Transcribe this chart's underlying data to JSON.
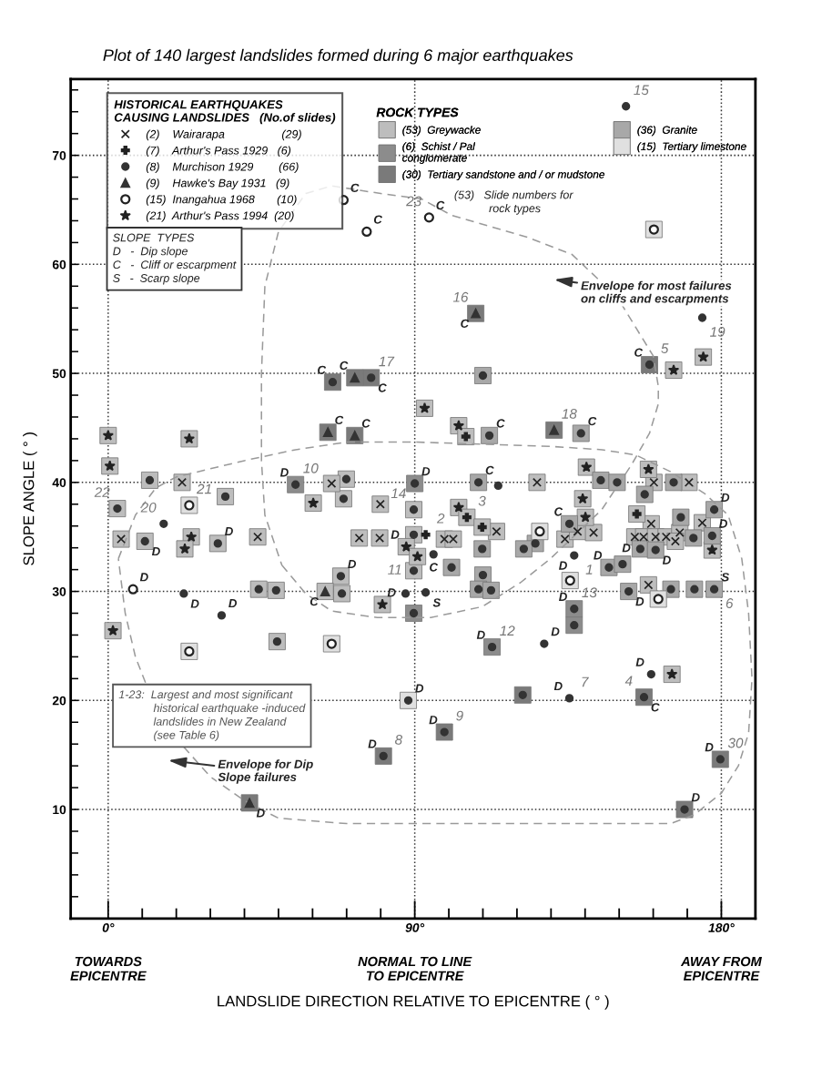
{
  "chart_data": {
    "type": "scatter",
    "title": "Plot of 140 largest landslides formed during 6 major earthquakes",
    "xlabel": "LANDSLIDE DIRECTION RELATIVE TO EPICENTRE ( ° )",
    "ylabel": "SLOPE ANGLE ( ° )",
    "legend_title": "HISTORICAL EARTHQUAKES\nCAUSING LANDSLIDES   (No.of slides)",
    "xlim": [
      -11,
      190
    ],
    "ylim": [
      0,
      77
    ],
    "xticks": [
      {
        "value": 0,
        "label": "0°"
      },
      {
        "value": 90,
        "label": "90°"
      },
      {
        "value": 180,
        "label": "180°"
      },
      {
        "value": 10,
        "label": null
      },
      {
        "value": 20,
        "label": null
      },
      {
        "value": 30,
        "label": null
      },
      {
        "value": 40,
        "label": null
      },
      {
        "value": 50,
        "label": null
      },
      {
        "value": 60,
        "label": null
      },
      {
        "value": 70,
        "label": null
      },
      {
        "value": 80,
        "label": null
      },
      {
        "value": 100,
        "label": null
      },
      {
        "value": 110,
        "label": null
      },
      {
        "value": 120,
        "label": null
      },
      {
        "value": 130,
        "label": null
      },
      {
        "value": 140,
        "label": null
      },
      {
        "value": 150,
        "label": null
      },
      {
        "value": 160,
        "label": null
      },
      {
        "value": 170,
        "label": null
      }
    ],
    "yticks": [
      10,
      20,
      30,
      40,
      50,
      60,
      70,
      {
        "value": 2,
        "label": null
      },
      {
        "value": 4,
        "label": null
      },
      {
        "value": 6,
        "label": null
      },
      {
        "value": 8,
        "label": null
      },
      {
        "value": 12,
        "label": null
      },
      {
        "value": 14,
        "label": null
      },
      {
        "value": 16,
        "label": null
      },
      {
        "value": 18,
        "label": null
      },
      {
        "value": 22,
        "label": null
      },
      {
        "value": 24,
        "label": null
      },
      {
        "value": 26,
        "label": null
      },
      {
        "value": 28,
        "label": null
      },
      {
        "value": 32,
        "label": null
      },
      {
        "value": 34,
        "label": null
      },
      {
        "value": 36,
        "label": null
      },
      {
        "value": 38,
        "label": null
      },
      {
        "value": 42,
        "label": null
      },
      {
        "value": 44,
        "label": null
      },
      {
        "value": 46,
        "label": null
      },
      {
        "value": 48,
        "label": null
      },
      {
        "value": 52,
        "label": null
      },
      {
        "value": 54,
        "label": null
      },
      {
        "value": 56,
        "label": null
      },
      {
        "value": 58,
        "label": null
      },
      {
        "value": 62,
        "label": null
      },
      {
        "value": 64,
        "label": null
      },
      {
        "value": 66,
        "label": null
      },
      {
        "value": 68,
        "label": null
      },
      {
        "value": 72,
        "label": null
      },
      {
        "value": 74,
        "label": null
      },
      {
        "value": 76,
        "label": null
      }
    ],
    "grid": true,
    "legend": "top left",
    "series": [
      {
        "name": "(53)  Greywacke",
        "marker": "square",
        "color": "#bdbdbd",
        "x": [
          12.2,
          34.4,
          2.7,
          10.8,
          32.2,
          69.9,
          69.1,
          89.7,
          89.7,
          89.7,
          68.3,
          68.6,
          44.2,
          49.3,
          49.6,
          63.7,
          21.7,
          3.8,
          43.9,
          65.6,
          79.9,
          73.7,
          79.7,
          98.7,
          101.3,
          114,
          125.9,
          160.2,
          170.5,
          134.1,
          137.8,
          142.5,
          159.4,
          154.6,
          157.2,
          160.7,
          163.8,
          167.8,
          166.5,
          174.4,
          158.6,
          0,
          23.8,
          0.5,
          24.4,
          22.5,
          1.4,
          60.2,
          87.5,
          90.8,
          80.5,
          92.9,
          102.9,
          102.9,
          140.4,
          158.6,
          139.3,
          140.1,
          177.3,
          165.5,
          174.7,
          166,
          105,
          105.3,
          109.8,
          155.2
        ],
        "values": [
          40.2,
          38.7,
          37.6,
          34.6,
          34.4,
          40.3,
          38.5,
          37.5,
          35.2,
          31.9,
          31.4,
          29.8,
          30.2,
          30.1,
          25.4,
          30,
          40,
          34.8,
          35,
          39.9,
          38,
          34.9,
          34.9,
          34.8,
          34.8,
          35.5,
          40,
          40,
          40,
          34.8,
          35.5,
          35.4,
          36.2,
          35,
          35,
          35,
          35,
          35.4,
          34.6,
          36.3,
          30.6,
          44.3,
          44,
          41.5,
          35,
          33.9,
          26.4,
          38.1,
          34.1,
          33.2,
          28.8,
          46.8,
          45.2,
          37.7,
          41.4,
          41.2,
          38.5,
          36.8,
          33.8,
          22.4,
          51.5,
          50.3,
          44.2,
          36.8,
          35.9,
          37.1
        ]
      },
      {
        "name": "(6)  Schist / Pal\nconglomerate",
        "marker": "square",
        "color": "#8c8c8c",
        "x": [
          55,
          90,
          112.7,
          136.8,
          136.8,
          89.7
        ],
        "values": [
          39.8,
          39.9,
          24.9,
          28.4,
          26.9,
          28
        ]
      },
      {
        "name": "(30)  Tertiary sandstone and / or mudstone",
        "marker": "square",
        "color": "#7a7a7a",
        "x": [
          65.9,
          77.2,
          107.9,
          130.9,
          158.9,
          64.5,
          72.4,
          41.5,
          80.8,
          169.2,
          179.7,
          98.7,
          121.7,
          157.3,
          72.4
        ],
        "values": [
          49.2,
          49.6,
          55.5,
          44.8,
          50.8,
          44.6,
          44.3,
          10.6,
          14.9,
          10,
          14.6,
          17.1,
          20.5,
          20.3,
          49.6
        ]
      },
      {
        "name": "(36)  Granite",
        "marker": "square",
        "color": "#a8a8a8",
        "x": [
          110,
          111.9,
          138.8,
          108.7,
          144.6,
          149.4,
          166,
          157.5,
          109.8,
          100.8,
          110,
          108.7,
          112.4,
          125.4,
          122,
          135.4,
          147,
          151,
          156.2,
          160.7,
          171.8,
          168.1,
          177.9,
          177.3,
          152.8,
          165.2,
          172.1,
          177.9
        ],
        "values": [
          49.8,
          44.3,
          44.5,
          40,
          40.2,
          40,
          40,
          38.9,
          33.9,
          32.2,
          31.5,
          30.2,
          30.1,
          34.4,
          33.9,
          36.2,
          32.2,
          32.5,
          33.9,
          33.8,
          34.9,
          36.8,
          37.5,
          35.1,
          30,
          30.2,
          30.2,
          30.2
        ]
      },
      {
        "name": "(15)  Tertiary limestone",
        "marker": "square",
        "color": "#e0e0e0",
        "x": [
          23.8,
          65.6,
          160.2,
          23.8,
          126.7,
          135.6,
          161.5,
          88.1
        ],
        "values": [
          24.5,
          25.2,
          63.2,
          37.9,
          35.5,
          31,
          29.3,
          20
        ]
      },
      {
        "name": "(2)    Wairarapa                  (29)",
        "marker": "cross",
        "color": "#222222",
        "x": [
          21.7,
          3.8,
          43.9,
          65.6,
          79.9,
          73.7,
          79.7,
          98.7,
          101.3,
          114,
          125.9,
          160.2,
          170.5,
          134.1,
          137.8,
          142.5,
          159.4,
          154.6,
          157.2,
          160.7,
          163.8,
          167.8,
          166.5,
          174.4,
          158.6
        ],
        "values": [
          40,
          34.8,
          35,
          39.9,
          38,
          34.9,
          34.9,
          34.8,
          34.8,
          35.5,
          40,
          40,
          40,
          34.8,
          35.5,
          35.4,
          36.2,
          35,
          35,
          35,
          35,
          35.4,
          34.6,
          36.3,
          30.6
        ]
      },
      {
        "name": "(7)    Arthur's Pass 1929   (6)",
        "marker": "plus",
        "color": "#222222",
        "x": [
          93.2,
          105,
          105.3,
          109.8,
          155.2
        ],
        "values": [
          35.2,
          44.2,
          36.8,
          35.9,
          37.1
        ]
      },
      {
        "name": "(8)    Murchison 1929        (66)",
        "marker": "circle",
        "color": "#333333",
        "x": [
          12.2,
          34.4,
          2.7,
          16.3,
          10.8,
          32.2,
          22.2,
          33.3,
          55,
          69.9,
          69.1,
          90,
          89.7,
          89.7,
          95.5,
          89.7,
          87.3,
          93.2,
          89.7,
          68.3,
          68.6,
          44.2,
          49.3,
          49.6,
          65.9,
          77.2,
          152,
          110,
          174.4,
          158.9,
          111.9,
          138.8,
          108.7,
          114.5,
          144.6,
          149.4,
          166,
          157.5,
          109.8,
          100.8,
          110,
          108.7,
          112.4,
          125.4,
          122,
          135.4,
          136.8,
          147,
          151,
          156.2,
          160.7,
          171.8,
          168.1,
          177.9,
          177.3,
          152.8,
          165.2,
          172.1,
          177.9,
          136.8,
          136.8,
          112.7,
          128,
          159.4,
          121.7,
          135.4,
          157.3,
          98.7,
          179.7,
          169.2,
          88.1,
          80.8
        ],
        "values": [
          40.2,
          38.7,
          37.6,
          36.2,
          34.6,
          34.4,
          29.8,
          27.8,
          39.8,
          40.3,
          38.5,
          39.9,
          37.5,
          35.2,
          33.4,
          31.9,
          29.8,
          29.9,
          28,
          31.4,
          29.8,
          30.2,
          30.1,
          25.4,
          49.2,
          49.6,
          74.5,
          49.8,
          55.1,
          50.8,
          44.3,
          44.5,
          40,
          39.7,
          40.2,
          40,
          40,
          38.9,
          33.9,
          32.2,
          31.5,
          30.2,
          30.1,
          34.4,
          33.9,
          36.2,
          33.3,
          32.2,
          32.5,
          33.9,
          33.8,
          34.9,
          36.8,
          37.5,
          35.1,
          30,
          30.2,
          30.2,
          30.2,
          28.4,
          26.9,
          24.9,
          25.2,
          22.4,
          20.5,
          20.2,
          20.3,
          17.1,
          14.6,
          10,
          20,
          14.9
        ]
      },
      {
        "name": "(9)    Hawke's Bay 1931   (9)",
        "marker": "triangle",
        "color": "#333333",
        "x": [
          64.5,
          72.4,
          72.4,
          63.7,
          107.9,
          130.9,
          41.5
        ],
        "values": [
          44.6,
          44.3,
          49.6,
          30,
          55.5,
          44.8,
          10.6
        ]
      },
      {
        "name": "(15)  Inangahua 1968       (10)",
        "marker": "circle-open",
        "color": "#222222",
        "x": [
          69.1,
          94.2,
          75.9,
          23.8,
          7.3,
          65.6,
          23.8,
          126.7,
          135.6,
          161.5,
          160.2
        ],
        "values": [
          65.9,
          64.3,
          63,
          37.9,
          30.2,
          25.2,
          24.5,
          35.5,
          31,
          29.3,
          63.2
        ]
      },
      {
        "name": "(21)  Arthur's Pass 1994  (20)",
        "marker": "star",
        "color": "#222222",
        "x": [
          0,
          23.8,
          0.5,
          24.4,
          22.5,
          1.4,
          60.2,
          87.5,
          90.8,
          80.5,
          92.9,
          102.9,
          102.9,
          140.4,
          158.6,
          139.3,
          140.1,
          177.3,
          165.5,
          174.7,
          166
        ],
        "values": [
          44.3,
          44,
          41.5,
          35,
          33.9,
          26.4,
          38.1,
          34.1,
          33.2,
          28.8,
          46.8,
          45.2,
          37.7,
          41.4,
          41.2,
          38.5,
          36.8,
          33.8,
          22.4,
          51.5,
          50.3
        ]
      }
    ],
    "annotations": [
      "SLOPE  TYPES\nD   -  Dip slope\nC   -  Cliff or escarpment\nS   -  Scarp slope",
      "1-23:  Largest and most significant\n           historical earthquake -induced\n           landslides in New Zealand\n           (see Table 6)",
      "(53)   Slide numbers for\n           rock types",
      "ROCK TYPES",
      "TOWARDS\nEPICENTRE",
      "NORMAL TO LINE\nTO EPICENTRE",
      "AWAY FROM\nEPICENTRE",
      "Envelope for Dip\nSlope failures",
      "Envelope for most failures\non cliffs and escarpments",
      {
        "text": "23",
        "x": 94.2,
        "y": 64.3
      },
      {
        "text": "15",
        "x": 152,
        "y": 74.5
      },
      {
        "text": "16",
        "x": 107.9,
        "y": 55.5
      },
      {
        "text": "19",
        "x": 174.4,
        "y": 55.1
      },
      {
        "text": "5",
        "x": 158.9,
        "y": 50.8
      },
      {
        "text": "17",
        "x": 77.2,
        "y": 49.6
      },
      {
        "text": "18",
        "x": 130.9,
        "y": 44.8
      },
      {
        "text": "10",
        "x": 55,
        "y": 39.8
      },
      {
        "text": "22",
        "x": 2.7,
        "y": 37.6
      },
      {
        "text": "21",
        "x": 23.8,
        "y": 37.9
      },
      {
        "text": "20",
        "x": 16.3,
        "y": 36.2
      },
      {
        "text": "14",
        "x": 89.7,
        "y": 37.5
      },
      {
        "text": "2",
        "x": 93.2,
        "y": 35.2
      },
      {
        "text": "3",
        "x": 105.3,
        "y": 36.8
      },
      {
        "text": "1",
        "x": 136.8,
        "y": 33.3
      },
      {
        "text": "11",
        "x": 89.7,
        "y": 31.9
      },
      {
        "text": "13",
        "x": 136.8,
        "y": 28.4
      },
      {
        "text": "12",
        "x": 112.7,
        "y": 24.9
      },
      {
        "text": "7",
        "x": 135.4,
        "y": 20.2
      },
      {
        "text": "4",
        "x": 157.3,
        "y": 20.3
      },
      {
        "text": "9",
        "x": 98.7,
        "y": 17.1
      },
      {
        "text": "8",
        "x": 80.8,
        "y": 14.9
      },
      {
        "text": "30",
        "x": 179.7,
        "y": 14.6
      },
      {
        "text": "6",
        "x": 177.9,
        "y": 30.2
      },
      {
        "text": "C",
        "x": 64.5,
        "y": 44.6
      },
      {
        "text": "C",
        "x": 72.4,
        "y": 44.3
      },
      {
        "text": "D",
        "x": 55,
        "y": 39.8
      },
      {
        "text": "D",
        "x": 90,
        "y": 39.9
      },
      {
        "text": "D",
        "x": 10.8,
        "y": 34.6
      },
      {
        "text": "D",
        "x": 32.2,
        "y": 34.4
      },
      {
        "text": "D",
        "x": 87.5,
        "y": 34.1
      },
      {
        "text": "C",
        "x": 95.5,
        "y": 33.4
      },
      {
        "text": "D",
        "x": 68.3,
        "y": 31.4
      },
      {
        "text": "C",
        "x": 63.7,
        "y": 30
      },
      {
        "text": "D",
        "x": 7.3,
        "y": 30.2
      },
      {
        "text": "D",
        "x": 22.2,
        "y": 29.8
      },
      {
        "text": "D",
        "x": 33.3,
        "y": 27.8
      },
      {
        "text": "D",
        "x": 87.3,
        "y": 29.8
      },
      {
        "text": "S",
        "x": 93.2,
        "y": 29.9
      },
      {
        "text": "C",
        "x": 69.1,
        "y": 65.9
      },
      {
        "text": "C",
        "x": 94.2,
        "y": 64.3
      },
      {
        "text": "C",
        "x": 75.9,
        "y": 63
      },
      {
        "text": "C",
        "x": 65.9,
        "y": 49.2
      },
      {
        "text": "C",
        "x": 72.4,
        "y": 49.6
      },
      {
        "text": "C",
        "x": 77.2,
        "y": 49.6
      },
      {
        "text": "C",
        "x": 107.9,
        "y": 55.5
      },
      {
        "text": "C",
        "x": 158.9,
        "y": 50.8
      },
      {
        "text": "C",
        "x": 111.9,
        "y": 44.3
      },
      {
        "text": "C",
        "x": 138.8,
        "y": 44.5
      },
      {
        "text": "C",
        "x": 108.7,
        "y": 40
      },
      {
        "text": "C",
        "x": 135.4,
        "y": 36.2
      },
      {
        "text": "D",
        "x": 136.8,
        "y": 33.3
      },
      {
        "text": "D",
        "x": 177.9,
        "y": 37.5
      },
      {
        "text": "D",
        "x": 177.3,
        "y": 35.1
      },
      {
        "text": "D",
        "x": 156.2,
        "y": 33.9
      },
      {
        "text": "D",
        "x": 160.7,
        "y": 33.8
      },
      {
        "text": "D",
        "x": 147,
        "y": 32.2
      },
      {
        "text": "D",
        "x": 152.8,
        "y": 30
      },
      {
        "text": "S",
        "x": 177.9,
        "y": 30.2
      },
      {
        "text": "D",
        "x": 136.8,
        "y": 28.4
      },
      {
        "text": "D",
        "x": 112.7,
        "y": 24.9
      },
      {
        "text": "D",
        "x": 128,
        "y": 25.2
      },
      {
        "text": "D",
        "x": 159.4,
        "y": 22.4
      },
      {
        "text": "D",
        "x": 135.4,
        "y": 20.2
      },
      {
        "text": "C",
        "x": 157.3,
        "y": 20.3
      },
      {
        "text": "D",
        "x": 98.7,
        "y": 17.1
      },
      {
        "text": "D",
        "x": 179.7,
        "y": 14.6
      },
      {
        "text": "D",
        "x": 169.2,
        "y": 10
      },
      {
        "text": "D",
        "x": 88.1,
        "y": 20
      },
      {
        "text": "D",
        "x": 80.8,
        "y": 14.9
      },
      {
        "text": "D",
        "x": 41.5,
        "y": 10.6
      }
    ]
  }
}
